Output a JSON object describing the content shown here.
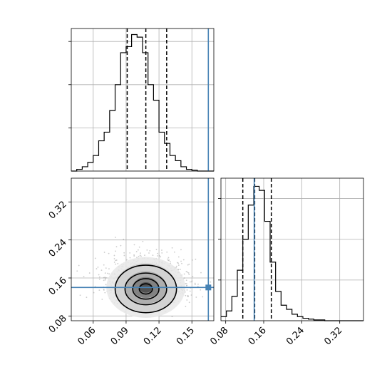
{
  "truth_color": "#4682b4",
  "chart_data": [
    {
      "type": "histogram",
      "panel": "top-left",
      "grid": true,
      "xlim": [
        0.04,
        0.17
      ],
      "bins_start": 0.04,
      "bin_width": 0.005,
      "counts": [
        0,
        2,
        5,
        10,
        18,
        35,
        45,
        70,
        100,
        137,
        144,
        158,
        155,
        137,
        100,
        82,
        45,
        32,
        18,
        12,
        5,
        2,
        1,
        0,
        0,
        0
      ],
      "quantiles": [
        0.091,
        0.108,
        0.127
      ],
      "truth": 0.165,
      "ymax": 165,
      "yticks": [
        0,
        50,
        100,
        150
      ]
    },
    {
      "type": "scatter",
      "panel": "bottom-left",
      "grid": true,
      "xlim": [
        0.04,
        0.17
      ],
      "ylim": [
        0.07,
        0.37
      ],
      "xticks": [
        0.06,
        0.09,
        0.12,
        0.15
      ],
      "xtick_labels": [
        "0.06",
        "0.09",
        "0.12",
        "0.15"
      ],
      "yticks": [
        0.08,
        0.16,
        0.24,
        0.32
      ],
      "ytick_labels": [
        "0.08",
        "0.16",
        "0.24",
        "0.32"
      ],
      "center": [
        0.108,
        0.14
      ],
      "spread": [
        0.018,
        0.03
      ],
      "truth": [
        0.165,
        0.14
      ],
      "contours": [
        {
          "rx": 0.006,
          "ry": 0.011
        },
        {
          "rx": 0.012,
          "ry": 0.022
        },
        {
          "rx": 0.019,
          "ry": 0.034
        },
        {
          "rx": 0.028,
          "ry": 0.051
        }
      ]
    },
    {
      "type": "histogram",
      "panel": "bottom-right",
      "grid": true,
      "xlim": [
        0.07,
        0.37
      ],
      "bins_start": 0.07,
      "bin_width": 0.0115,
      "counts": [
        5,
        12,
        30,
        62,
        100,
        142,
        165,
        160,
        122,
        72,
        36,
        19,
        14,
        8,
        5,
        3,
        2,
        1,
        1,
        0,
        0,
        0,
        0,
        0,
        0,
        0
      ],
      "quantiles": [
        0.116,
        0.141,
        0.176
      ],
      "truth": 0.14,
      "ymax": 175,
      "yticks": [
        0,
        50,
        100,
        150
      ],
      "xticks": [
        0.08,
        0.16,
        0.24,
        0.32
      ],
      "xtick_labels": [
        "0.08",
        "0.16",
        "0.24",
        "0.32"
      ]
    }
  ]
}
